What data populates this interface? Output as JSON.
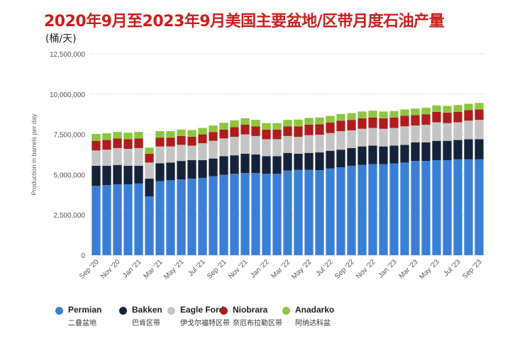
{
  "title": "2020年9月至2023年9月美国主要盆地/区带月度石油产量",
  "unit_label": "(桶/天)",
  "chart_data": {
    "type": "bar",
    "stacked": true,
    "ylabel": "Production in barrels per day",
    "ylim": [
      0,
      12500000
    ],
    "yticks": [
      0,
      2500000,
      5000000,
      7500000,
      10000000,
      12500000
    ],
    "ytick_labels": [
      "0",
      "2,500,000",
      "5,000,000",
      "7,500,000",
      "10,000,000",
      "12,500,000"
    ],
    "grid": true,
    "legend_position": "bottom",
    "categories": [
      "Sep '20",
      "Oct '20",
      "Nov '20",
      "Dec '20",
      "Jan '21",
      "Feb '21",
      "Mar '21",
      "Apr '21",
      "May '21",
      "Jun '21",
      "Jul '21",
      "Aug '21",
      "Sep '21",
      "Oct '21",
      "Nov '21",
      "Dec '21",
      "Jan '22",
      "Feb '22",
      "Mar '22",
      "Apr '22",
      "May '22",
      "Jun '22",
      "Jul '22",
      "Aug '22",
      "Sep '22",
      "Oct '22",
      "Nov '22",
      "Dec '22",
      "Jan '23",
      "Feb '23",
      "Mar '23",
      "Apr '23",
      "May '23",
      "Jun '23",
      "Jul '23",
      "Aug '23",
      "Sep '23"
    ],
    "xtick_labels": [
      "Sep '20",
      "",
      "Nov '20",
      "",
      "Jan '21",
      "",
      "Mar '21",
      "",
      "May '21",
      "",
      "Jul '21",
      "",
      "Sep '21",
      "",
      "Nov '21",
      "",
      "Jan '22",
      "",
      "Mar '22",
      "",
      "May '22",
      "",
      "Jul '22",
      "",
      "Sep '22",
      "",
      "Nov '22",
      "",
      "Jan '23",
      "",
      "Mar '23",
      "",
      "May '23",
      "",
      "Jul '23",
      "",
      "Sep '23"
    ],
    "series": [
      {
        "name": "Permian",
        "sub": "二叠盆地",
        "color": "#3a7fd5",
        "values": [
          4300000,
          4350000,
          4400000,
          4400000,
          4450000,
          3650000,
          4600000,
          4650000,
          4700000,
          4750000,
          4800000,
          4900000,
          5000000,
          5050000,
          5100000,
          5100000,
          5050000,
          5050000,
          5250000,
          5300000,
          5300000,
          5280000,
          5380000,
          5450000,
          5550000,
          5600000,
          5650000,
          5650000,
          5700000,
          5750000,
          5850000,
          5850000,
          5900000,
          5900000,
          5950000,
          5950000,
          5950000
        ]
      },
      {
        "name": "Bakken",
        "sub": "巴肯区带",
        "color": "#15233a",
        "values": [
          1250000,
          1200000,
          1200000,
          1150000,
          1100000,
          1100000,
          1100000,
          1100000,
          1150000,
          1150000,
          1100000,
          1100000,
          1150000,
          1150000,
          1200000,
          1150000,
          1100000,
          1100000,
          1100000,
          1000000,
          1050000,
          1100000,
          1100000,
          1100000,
          1100000,
          1150000,
          1150000,
          1100000,
          1100000,
          1100000,
          1150000,
          1150000,
          1200000,
          1200000,
          1200000,
          1250000,
          1250000
        ]
      },
      {
        "name": "Eagle Ford",
        "sub": "伊戈尔福特区带",
        "color": "#c4c4c4",
        "values": [
          950000,
          1000000,
          1050000,
          1050000,
          1100000,
          1000000,
          1050000,
          1000000,
          1000000,
          900000,
          1050000,
          1100000,
          1100000,
          1150000,
          1200000,
          1150000,
          1050000,
          1050000,
          1050000,
          1050000,
          1100000,
          1100000,
          1100000,
          1150000,
          1100000,
          1100000,
          1100000,
          1100000,
          1100000,
          1150000,
          1050000,
          1100000,
          1150000,
          1100000,
          1100000,
          1150000,
          1200000
        ]
      },
      {
        "name": "Niobrara",
        "sub": "奈厄布拉勒区带",
        "color": "#b01c1c",
        "values": [
          600000,
          600000,
          600000,
          600000,
          600000,
          550000,
          550000,
          550000,
          550000,
          550000,
          550000,
          550000,
          550000,
          600000,
          600000,
          600000,
          600000,
          600000,
          600000,
          650000,
          650000,
          650000,
          650000,
          650000,
          650000,
          650000,
          650000,
          650000,
          650000,
          650000,
          650000,
          650000,
          650000,
          650000,
          650000,
          650000,
          650000
        ]
      },
      {
        "name": "Anadarko",
        "sub": "阿纳达科盆",
        "color": "#8dc63f",
        "values": [
          420000,
          420000,
          400000,
          400000,
          400000,
          380000,
          400000,
          400000,
          400000,
          420000,
          400000,
          400000,
          420000,
          420000,
          400000,
          400000,
          400000,
          400000,
          400000,
          420000,
          420000,
          420000,
          420000,
          420000,
          420000,
          420000,
          420000,
          420000,
          400000,
          400000,
          400000,
          400000,
          400000,
          420000,
          420000,
          400000,
          400000
        ]
      }
    ]
  }
}
